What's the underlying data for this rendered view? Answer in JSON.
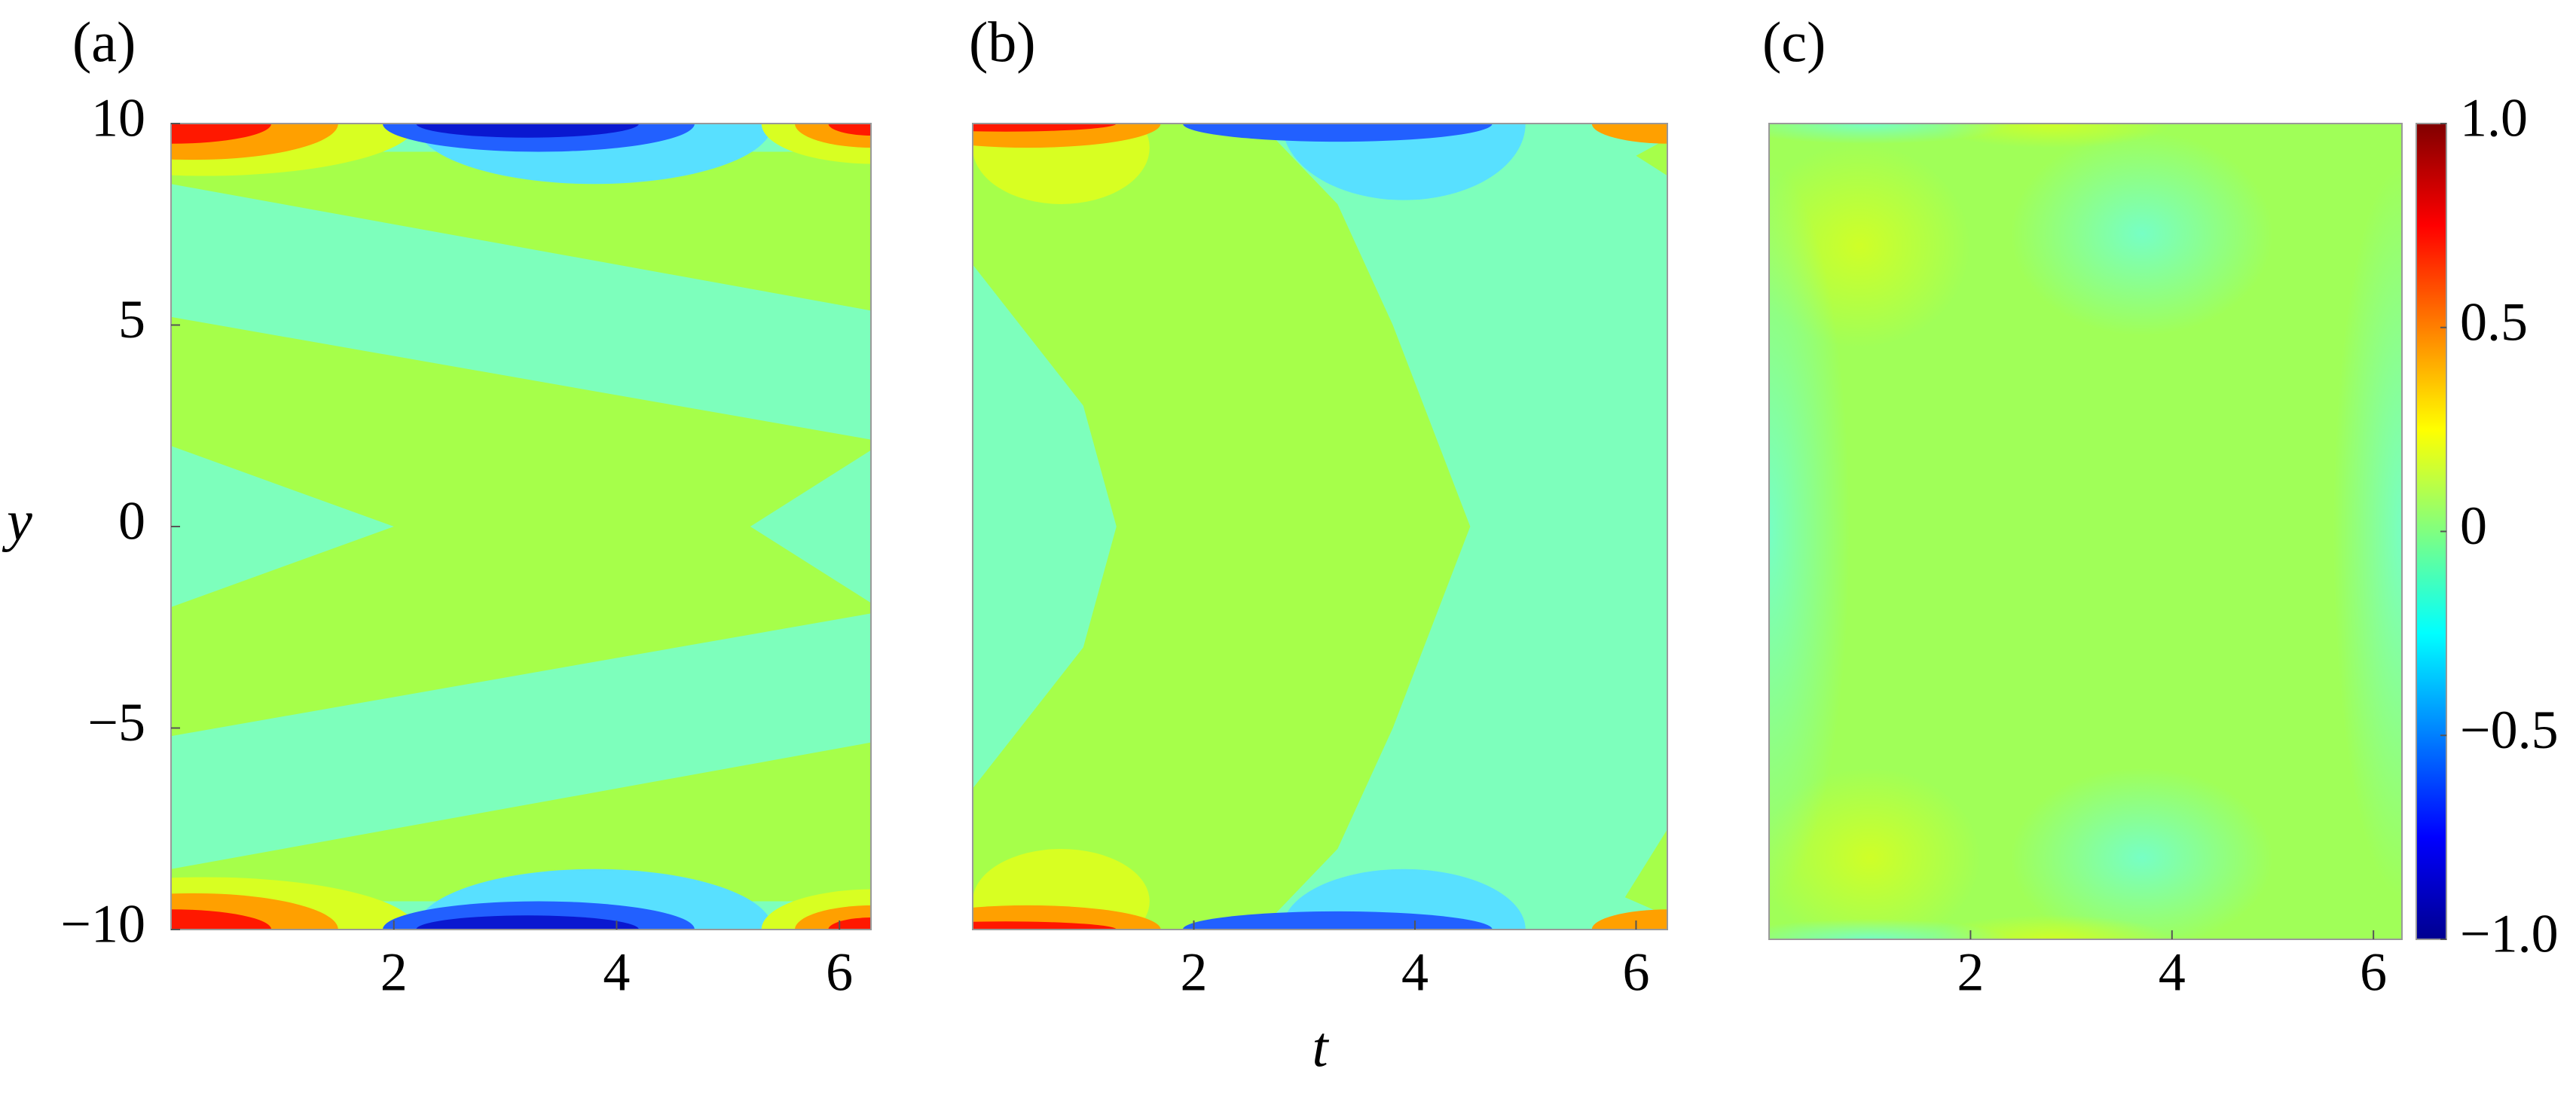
{
  "chart_data": [
    {
      "type": "contour",
      "label": "(a)",
      "xlim": [
        0,
        6.283
      ],
      "xticks": [
        2,
        4,
        6
      ],
      "ylim": [
        -10,
        10
      ],
      "yticks": [
        10,
        5,
        0,
        {
          "value": -5,
          "label": "−5"
        },
        {
          "value": -10,
          "label": "−10"
        }
      ],
      "ylabel": "y"
    },
    {
      "type": "contour",
      "label": "(b)",
      "xlim": [
        0,
        6.283
      ],
      "xticks": [
        2,
        4,
        6
      ],
      "ylim": [
        -10,
        10
      ],
      "xlabel": "t"
    },
    {
      "type": "contour",
      "label": "(c)",
      "xlim": [
        0,
        6.283
      ],
      "xticks": [
        2,
        4,
        6
      ],
      "ylim": [
        -10,
        10
      ],
      "colorbar": {
        "clim": [
          -1,
          1
        ],
        "ticks": [
          {
            "value": 1,
            "label": "1.0"
          },
          0.5,
          0,
          {
            "value": -0.5,
            "label": "−0.5"
          },
          {
            "value": -1,
            "label": "−1.0"
          }
        ]
      }
    }
  ]
}
